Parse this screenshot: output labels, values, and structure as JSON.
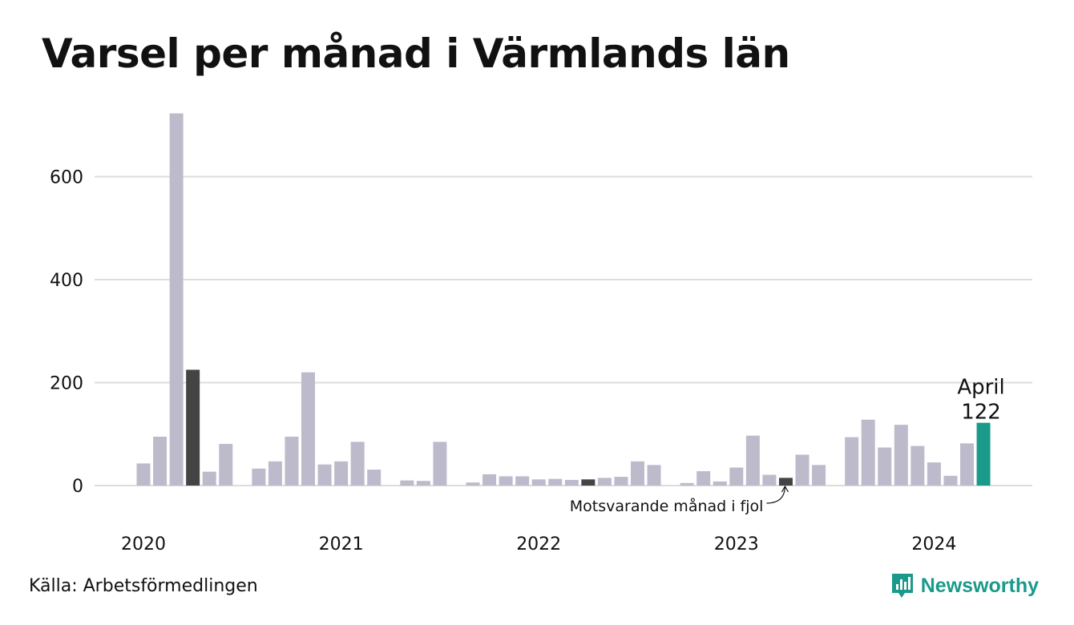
{
  "chart_data": {
    "type": "bar",
    "title": "Varsel per månad i Värmlands län",
    "xlabel": "",
    "ylabel": "",
    "ylim": [
      0,
      730
    ],
    "yticks": [
      0,
      200,
      400,
      600
    ],
    "grid": true,
    "year_labels": [
      "2020",
      "2021",
      "2022",
      "2023",
      "2024"
    ],
    "months": [
      "2020-01",
      "2020-02",
      "2020-03",
      "2020-04",
      "2020-05",
      "2020-06",
      "2020-07",
      "2020-08",
      "2020-09",
      "2020-10",
      "2020-11",
      "2020-12",
      "2021-01",
      "2021-02",
      "2021-03",
      "2021-04",
      "2021-05",
      "2021-06",
      "2021-07",
      "2021-08",
      "2021-09",
      "2021-10",
      "2021-11",
      "2021-12",
      "2022-01",
      "2022-02",
      "2022-03",
      "2022-04",
      "2022-05",
      "2022-06",
      "2022-07",
      "2022-08",
      "2022-09",
      "2022-10",
      "2022-11",
      "2022-12",
      "2023-01",
      "2023-02",
      "2023-03",
      "2023-04",
      "2023-05",
      "2023-06",
      "2023-07",
      "2023-08",
      "2023-09",
      "2023-10",
      "2023-11",
      "2023-12",
      "2024-01",
      "2024-02",
      "2024-03",
      "2024-04"
    ],
    "values": [
      43,
      95,
      723,
      225,
      27,
      81,
      0,
      33,
      47,
      95,
      220,
      41,
      47,
      85,
      31,
      0,
      10,
      9,
      85,
      0,
      6,
      22,
      18,
      18,
      12,
      13,
      11,
      12,
      15,
      17,
      47,
      40,
      0,
      5,
      28,
      8,
      35,
      97,
      21,
      15,
      60,
      40,
      0,
      94,
      128,
      74,
      118,
      77,
      45,
      19,
      82,
      122
    ],
    "highlight_previous_year": [
      "2020-04",
      "2022-04",
      "2023-04"
    ],
    "highlight_current": "2024-04",
    "current_label": {
      "month": "April",
      "value": "122"
    },
    "annotation": "Motsvarande månad i fjol",
    "colors": {
      "default": "#bdbbcb",
      "previous_year": "#444444",
      "current": "#1a9a8a",
      "grid": "#dddddd"
    }
  },
  "source": "Källa: Arbetsförmedlingen",
  "brand": {
    "name": "Newsworthy",
    "icon": "newsworthy-logo-icon",
    "color": "#1a9a8a"
  }
}
